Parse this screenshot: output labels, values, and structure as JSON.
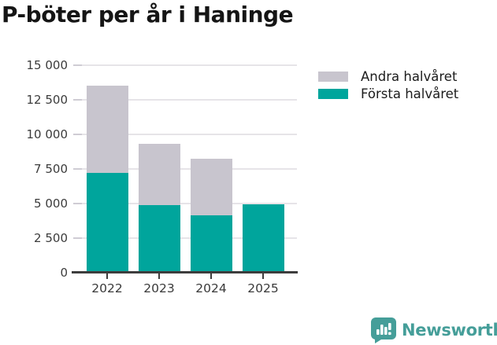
{
  "title": "P-böter per år i Haninge",
  "chart_data": {
    "type": "bar",
    "stacked": true,
    "title": "P-böter per år i Haninge",
    "categories": [
      "2022",
      "2023",
      "2024",
      "2025"
    ],
    "series": [
      {
        "name": "Första halvåret",
        "color": "#00a59c",
        "values": [
          7200,
          4880,
          4170,
          4950
        ]
      },
      {
        "name": "Andra halvåret",
        "color": "#c8c5ce",
        "values": [
          6350,
          4460,
          4090,
          0
        ]
      }
    ],
    "ylim": [
      0,
      15000
    ],
    "yticks": [
      0,
      2500,
      5000,
      7500,
      10000,
      12500,
      15000
    ],
    "ytick_labels": [
      "0",
      "2 500",
      "5 000",
      "7 500",
      "10 000",
      "12 500",
      "15 000"
    ],
    "grid": true,
    "legend_position": "right",
    "legend_order": [
      "Andra halvåret",
      "Första halvåret"
    ]
  },
  "legend": {
    "items": [
      {
        "label": "Andra halvåret",
        "color": "#c8c5ce"
      },
      {
        "label": "Första halvåret",
        "color": "#00a59c"
      }
    ]
  },
  "footer": {
    "brand": "Newsworthy",
    "brand_color": "#459e99"
  },
  "colors": {
    "first_half": "#00a59c",
    "second_half": "#c8c5ce",
    "axis": "#3d3d3d",
    "gridline": "#e6e4e8",
    "text": "#3c3c3c",
    "title": "#151515"
  }
}
